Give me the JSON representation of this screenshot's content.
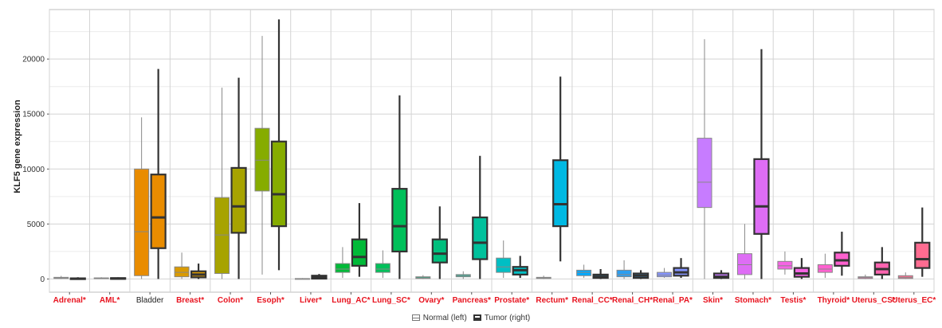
{
  "chart_data": {
    "type": "box",
    "title": "",
    "xlabel": "",
    "ylabel": "KLF5 gene expression",
    "ylim": [
      -1200,
      24500
    ],
    "yticks": [
      0,
      5000,
      10000,
      15000,
      20000
    ],
    "grid": true,
    "legend_position": "bottom",
    "legend": [
      {
        "label": "Normal (left)"
      },
      {
        "label": "Tumor (right)"
      }
    ],
    "colors": {
      "significant_label": "#e8131f",
      "plain_label": "#222222",
      "tumor_outline": "#333333",
      "normal_outline": "#888888"
    },
    "categories": [
      {
        "name": "Adrenal*",
        "significant": true,
        "color": "#e8131f",
        "normal": {
          "min": 0,
          "q1": 50,
          "median": 100,
          "q3": 150,
          "max": 280
        },
        "tumor": {
          "min": 0,
          "q1": 10,
          "median": 30,
          "q3": 60,
          "max": 160
        }
      },
      {
        "name": "AML*",
        "significant": true,
        "color": "#e8131f",
        "normal": {
          "min": 0,
          "q1": 30,
          "median": 70,
          "q3": 100,
          "max": 160
        },
        "tumor": {
          "min": 0,
          "q1": 20,
          "median": 40,
          "q3": 80,
          "max": 150
        }
      },
      {
        "name": "Bladder",
        "significant": false,
        "color": "#e98c00",
        "normal": {
          "min": 0,
          "q1": 300,
          "median": 4300,
          "q3": 10000,
          "max": 14700
        },
        "tumor": {
          "min": 0,
          "q1": 2800,
          "median": 5600,
          "q3": 9500,
          "max": 19100
        }
      },
      {
        "name": "Breast*",
        "significant": true,
        "color": "#d99a00",
        "normal": {
          "min": 0,
          "q1": 200,
          "median": 600,
          "q3": 1100,
          "max": 2400
        },
        "tumor": {
          "min": 0,
          "q1": 150,
          "median": 400,
          "q3": 700,
          "max": 1400
        }
      },
      {
        "name": "Colon*",
        "significant": true,
        "color": "#a7a300",
        "normal": {
          "min": 0,
          "q1": 500,
          "median": 4000,
          "q3": 7400,
          "max": 17400
        },
        "tumor": {
          "min": 0,
          "q1": 4200,
          "median": 6600,
          "q3": 10100,
          "max": 18300
        }
      },
      {
        "name": "Esoph*",
        "significant": true,
        "color": "#86ac00",
        "normal": {
          "min": 400,
          "q1": 8000,
          "median": 10800,
          "q3": 13700,
          "max": 22100
        },
        "tumor": {
          "min": 800,
          "q1": 4800,
          "median": 7700,
          "q3": 12500,
          "max": 23600
        }
      },
      {
        "name": "Liver*",
        "significant": true,
        "color": "#4cb400",
        "normal": {
          "min": 0,
          "q1": 10,
          "median": 20,
          "q3": 40,
          "max": 80
        },
        "tumor": {
          "min": 0,
          "q1": 30,
          "median": 150,
          "q3": 300,
          "max": 450
        }
      },
      {
        "name": "Lung_AC*",
        "significant": true,
        "color": "#00ba38",
        "normal": {
          "min": 100,
          "q1": 600,
          "median": 900,
          "q3": 1400,
          "max": 2900
        },
        "tumor": {
          "min": 200,
          "q1": 1200,
          "median": 2000,
          "q3": 3600,
          "max": 6900
        }
      },
      {
        "name": "Lung_SC*",
        "significant": true,
        "color": "#00c05a",
        "normal": {
          "min": 100,
          "q1": 600,
          "median": 900,
          "q3": 1400,
          "max": 2600
        },
        "tumor": {
          "min": 0,
          "q1": 2500,
          "median": 4800,
          "q3": 8200,
          "max": 16700
        }
      },
      {
        "name": "Ovary*",
        "significant": true,
        "color": "#00bf7d",
        "normal": {
          "min": 0,
          "q1": 50,
          "median": 100,
          "q3": 200,
          "max": 350
        },
        "tumor": {
          "min": 0,
          "q1": 1500,
          "median": 2300,
          "q3": 3600,
          "max": 6600
        }
      },
      {
        "name": "Pancreas*",
        "significant": true,
        "color": "#00c19c",
        "normal": {
          "min": 0,
          "q1": 200,
          "median": 300,
          "q3": 400,
          "max": 700
        },
        "tumor": {
          "min": 0,
          "q1": 1800,
          "median": 3300,
          "q3": 5600,
          "max": 11200
        }
      },
      {
        "name": "Prostate*",
        "significant": true,
        "color": "#00bfc4",
        "normal": {
          "min": 100,
          "q1": 600,
          "median": 1100,
          "q3": 1900,
          "max": 3500
        },
        "tumor": {
          "min": 100,
          "q1": 400,
          "median": 800,
          "q3": 1100,
          "max": 2100
        }
      },
      {
        "name": "Rectum*",
        "significant": true,
        "color": "#00b9e3",
        "normal": {
          "min": 0,
          "q1": 50,
          "median": 100,
          "q3": 150,
          "max": 300
        },
        "tumor": {
          "min": 1600,
          "q1": 4800,
          "median": 6800,
          "q3": 10800,
          "max": 18400
        }
      },
      {
        "name": "Renal_CC*",
        "significant": true,
        "color": "#00a9ff",
        "normal": {
          "min": 100,
          "q1": 300,
          "median": 600,
          "q3": 800,
          "max": 1300
        },
        "tumor": {
          "min": 0,
          "q1": 100,
          "median": 200,
          "q3": 400,
          "max": 900
        }
      },
      {
        "name": "Renal_CH*",
        "significant": true,
        "color": "#2b9ef0",
        "normal": {
          "min": 0,
          "q1": 200,
          "median": 400,
          "q3": 800,
          "max": 1700
        },
        "tumor": {
          "min": 0,
          "q1": 100,
          "median": 300,
          "q3": 500,
          "max": 800
        }
      },
      {
        "name": "Renal_PA*",
        "significant": true,
        "color": "#8494ff",
        "normal": {
          "min": 100,
          "q1": 200,
          "median": 350,
          "q3": 600,
          "max": 1000
        },
        "tumor": {
          "min": 100,
          "q1": 300,
          "median": 600,
          "q3": 1000,
          "max": 1900
        }
      },
      {
        "name": "Skin*",
        "significant": true,
        "color": "#c77cff",
        "normal": {
          "min": 0,
          "q1": 6500,
          "median": 8800,
          "q3": 12800,
          "max": 21800
        },
        "tumor": {
          "min": 0,
          "q1": 100,
          "median": 200,
          "q3": 500,
          "max": 800
        }
      },
      {
        "name": "Stomach*",
        "significant": true,
        "color": "#de6df5",
        "normal": {
          "min": 0,
          "q1": 400,
          "median": 1300,
          "q3": 2300,
          "max": 5000
        },
        "tumor": {
          "min": 0,
          "q1": 4100,
          "median": 6600,
          "q3": 10900,
          "max": 20900
        }
      },
      {
        "name": "Testis*",
        "significant": true,
        "color": "#f564e3",
        "normal": {
          "min": 400,
          "q1": 900,
          "median": 1200,
          "q3": 1600,
          "max": 2500
        },
        "tumor": {
          "min": 0,
          "q1": 200,
          "median": 500,
          "q3": 1000,
          "max": 1900
        }
      },
      {
        "name": "Thyroid*",
        "significant": true,
        "color": "#fe61cf",
        "normal": {
          "min": 100,
          "q1": 600,
          "median": 900,
          "q3": 1300,
          "max": 2300
        },
        "tumor": {
          "min": 300,
          "q1": 1200,
          "median": 1700,
          "q3": 2400,
          "max": 4300
        }
      },
      {
        "name": "Uterus_CS*",
        "significant": true,
        "color": "#ff64b0",
        "normal": {
          "min": 0,
          "q1": 50,
          "median": 150,
          "q3": 200,
          "max": 400
        },
        "tumor": {
          "min": 0,
          "q1": 400,
          "median": 900,
          "q3": 1500,
          "max": 2900
        }
      },
      {
        "name": "Uterus_EC*",
        "significant": true,
        "color": "#ff6c91",
        "normal": {
          "min": 0,
          "q1": 50,
          "median": 150,
          "q3": 300,
          "max": 600
        },
        "tumor": {
          "min": 200,
          "q1": 1000,
          "median": 1800,
          "q3": 3300,
          "max": 6500
        }
      }
    ]
  }
}
